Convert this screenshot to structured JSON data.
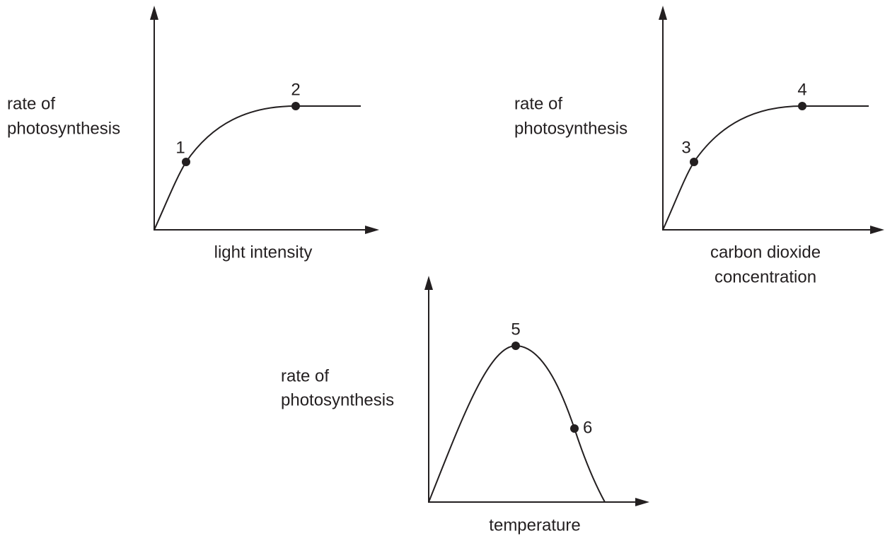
{
  "graphs": [
    {
      "y_label": [
        "rate of",
        "photosynthesis"
      ],
      "x_label": [
        "light intensity"
      ],
      "points": [
        "1",
        "2"
      ]
    },
    {
      "y_label": [
        "rate of",
        "photosynthesis"
      ],
      "x_label": [
        "carbon dioxide",
        "concentration"
      ],
      "points": [
        "3",
        "4"
      ]
    },
    {
      "y_label": [
        "rate of",
        "photosynthesis"
      ],
      "x_label": [
        "temperature"
      ],
      "points": [
        "5",
        "6"
      ]
    }
  ]
}
